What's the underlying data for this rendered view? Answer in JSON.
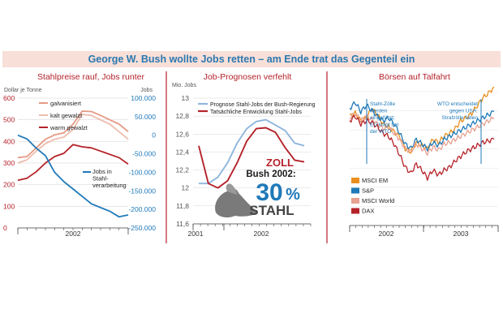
{
  "title": "George W. Bush wollte Jobs retten – am Ende trat das Gegenteil ein",
  "chart_data": [
    {
      "type": "line",
      "title": "Stahlpreise rauf, Jobs runter",
      "ylabel_left": "Dollar je Tonne",
      "ylabel_right": "Jobs",
      "ylim_left": [
        0,
        600
      ],
      "ylim_right": [
        -250000,
        100000
      ],
      "yticks_left": [
        "0",
        "100",
        "200",
        "300",
        "400",
        "500",
        "600"
      ],
      "yticks_right": [
        "-250.000",
        "-200.000",
        "-150.000",
        "-100.000",
        "-50.000",
        "0",
        "50.000",
        "100.000"
      ],
      "xlabel": "2002",
      "series": [
        {
          "name": "galvanisiert",
          "color": "#e59a85",
          "axis": "left",
          "values": [
            325,
            330,
            370,
            410,
            430,
            440,
            480,
            540,
            538,
            520,
            500,
            480,
            445
          ]
        },
        {
          "name": "kalt gewalzt",
          "color": "#edbdae",
          "axis": "left",
          "values": [
            300,
            315,
            355,
            390,
            410,
            420,
            455,
            525,
            520,
            500,
            480,
            445,
            410
          ]
        },
        {
          "name": "warm gewalzt",
          "color": "#b5222a",
          "axis": "left",
          "values": [
            220,
            230,
            260,
            300,
            330,
            345,
            385,
            375,
            370,
            355,
            340,
            325,
            295
          ]
        },
        {
          "name": "Jobs in Stahl-verarbeitung",
          "color": "#1f79b9",
          "axis": "right",
          "values": [
            0,
            -10000,
            -35000,
            -55000,
            -100000,
            -125000,
            -145000,
            -165000,
            -185000,
            -195000,
            -205000,
            -220000,
            -215000
          ]
        }
      ]
    },
    {
      "type": "line",
      "title": "Job-Prognosen verfehlt",
      "ylabel": "Mio. Jobs",
      "ylim": [
        11.6,
        13.0
      ],
      "yticks": [
        "11,6",
        "11,8",
        "12",
        "12,2",
        "12,4",
        "12,6",
        "12,8",
        "13"
      ],
      "xticks": [
        "2001",
        "2002"
      ],
      "annotation": [
        "ZOLL",
        "Bush 2002:",
        "30",
        "%",
        "STAHL"
      ],
      "series": [
        {
          "name": "Prognose Stahl-Jobs der Bush-Regierung",
          "color": "#8fb6dd",
          "values": [
            12.05,
            12.05,
            12.12,
            12.28,
            12.5,
            12.66,
            12.74,
            12.76,
            12.7,
            12.64,
            12.5,
            12.47
          ]
        },
        {
          "name": "Tatsächliche Entwicklung Stahl-Jobs",
          "color": "#b5222a",
          "values": [
            12.47,
            12.05,
            12.0,
            12.08,
            12.28,
            12.52,
            12.66,
            12.67,
            12.62,
            12.45,
            12.31,
            12.29
          ]
        }
      ]
    },
    {
      "type": "line",
      "title": "Börsen auf Talfahrt",
      "xticks": [
        "2002",
        "2003"
      ],
      "annotations": [
        "Stahl-Zölle werden eingeführt; EU klagt bei der WTO",
        "WTO entscheidet gegen USA: Strafzölle fallen"
      ],
      "series": [
        {
          "name": "MSCI EM",
          "color": "#e98f1e",
          "values": [
            73,
            75,
            70,
            72,
            78,
            74,
            68,
            66,
            63,
            60,
            52,
            50,
            56,
            54,
            52,
            58,
            56,
            60,
            62,
            65,
            70,
            72,
            75,
            80,
            85,
            88,
            92
          ]
        },
        {
          "name": "S&P",
          "color": "#1f79b9",
          "values": [
            78,
            82,
            76,
            80,
            77,
            73,
            70,
            72,
            68,
            62,
            55,
            52,
            58,
            55,
            52,
            56,
            54,
            58,
            60,
            62,
            64,
            66,
            68,
            70,
            72,
            74,
            76
          ]
        },
        {
          "name": "MSCI World",
          "color": "#e7a091",
          "values": [
            72,
            75,
            70,
            73,
            71,
            68,
            65,
            66,
            62,
            58,
            52,
            50,
            55,
            52,
            49,
            53,
            51,
            55,
            56,
            58,
            60,
            62,
            64,
            66,
            68,
            70,
            72
          ]
        },
        {
          "name": "DAX",
          "color": "#b5222a",
          "values": [
            70,
            73,
            68,
            70,
            69,
            66,
            62,
            60,
            55,
            48,
            40,
            36,
            42,
            38,
            33,
            38,
            35,
            38,
            40,
            44,
            47,
            50,
            52,
            54,
            56,
            57,
            58
          ]
        }
      ]
    }
  ]
}
